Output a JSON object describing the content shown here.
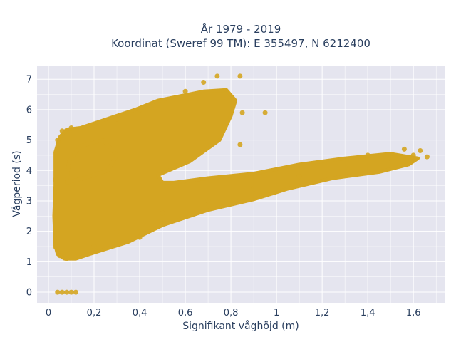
{
  "chart_data": {
    "type": "scatter",
    "title": "År 1979 - 2019",
    "subtitle": "Koordinat (Sweref 99 TM): E 355497, N 6212400",
    "xlabel": "Signifikant våghöjd (m)",
    "ylabel": "Vågperiod (s)",
    "xlim": [
      -0.05,
      1.74
    ],
    "ylim": [
      -0.35,
      7.45
    ],
    "x_ticks": [
      0,
      0.2,
      0.4,
      0.6,
      0.8,
      1,
      1.2,
      1.4,
      1.6
    ],
    "x_tick_labels": [
      "0",
      "0,2",
      "0,4",
      "0,6",
      "0,8",
      "1",
      "1,2",
      "1,4",
      "1,6"
    ],
    "y_ticks": [
      0,
      1,
      2,
      3,
      4,
      5,
      6,
      7
    ],
    "y_tick_labels": [
      "0",
      "1",
      "2",
      "3",
      "4",
      "5",
      "6",
      "7"
    ],
    "grid": true,
    "colors": {
      "marker": "#d4a521",
      "plot_bg": "#e5e5ef",
      "grid": "#ffffff",
      "text": "#2a3f5f"
    },
    "series": [
      {
        "points": [
          [
            0.04,
            0
          ],
          [
            0.06,
            0
          ],
          [
            0.08,
            0
          ],
          [
            0.1,
            0
          ],
          [
            0.12,
            0
          ],
          [
            0.03,
            1.5
          ],
          [
            0.05,
            1.2
          ],
          [
            0.08,
            1.1
          ],
          [
            0.12,
            1.15
          ],
          [
            0.15,
            1.3
          ],
          [
            0.2,
            1.5
          ],
          [
            0.03,
            3.7
          ],
          [
            0.03,
            2.5
          ],
          [
            0.04,
            5.0
          ],
          [
            0.06,
            5.3
          ],
          [
            0.1,
            5.4
          ],
          [
            0.3,
            5.7
          ],
          [
            0.4,
            6.0
          ],
          [
            0.5,
            6.3
          ],
          [
            0.6,
            6.6
          ],
          [
            0.68,
            6.9
          ],
          [
            0.74,
            7.1
          ],
          [
            0.84,
            7.1
          ],
          [
            0.78,
            6.4
          ],
          [
            0.85,
            5.9
          ],
          [
            0.95,
            5.9
          ],
          [
            0.84,
            4.85
          ],
          [
            0.3,
            2.0
          ],
          [
            0.5,
            2.6
          ],
          [
            0.7,
            3.0
          ],
          [
            0.9,
            3.4
          ],
          [
            1.1,
            3.8
          ],
          [
            1.3,
            4.1
          ],
          [
            1.4,
            4.5
          ],
          [
            1.5,
            4.4
          ],
          [
            1.56,
            4.7
          ],
          [
            1.6,
            4.5
          ],
          [
            1.63,
            4.65
          ],
          [
            1.66,
            4.45
          ],
          [
            0.4,
            1.8
          ],
          [
            0.41,
            1.95
          ]
        ]
      }
    ]
  }
}
